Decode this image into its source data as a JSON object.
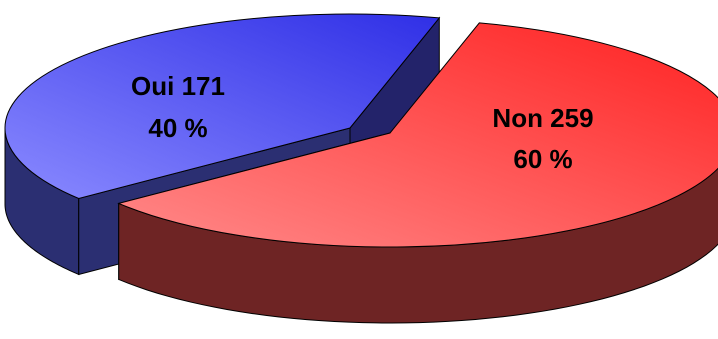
{
  "chart_data": {
    "type": "pie",
    "style": "3d-exploded",
    "slices": [
      {
        "category": "Oui",
        "value": 171,
        "percent_label": "40 %",
        "label": "Oui 171",
        "color": "#2f2fe6",
        "color_light": "#8a8aff",
        "color_side": "#2b2f72"
      },
      {
        "category": "Non",
        "value": 259,
        "percent_label": "60 %",
        "label": "Non 259",
        "color": "#ff2020",
        "color_light": "#ff8a8a",
        "color_side": "#6e2424"
      }
    ],
    "title": "",
    "legend": "none"
  }
}
